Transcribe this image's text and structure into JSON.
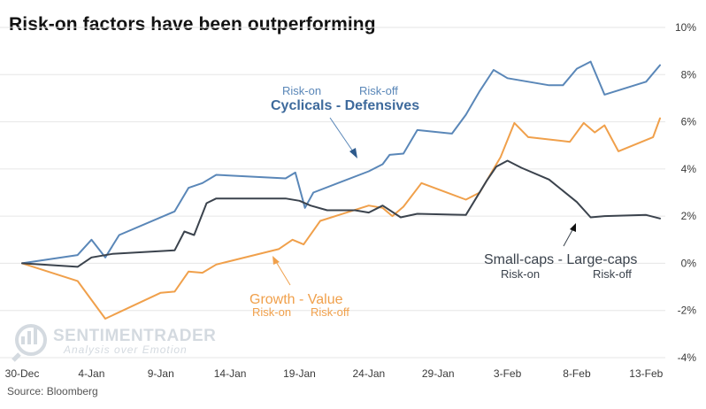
{
  "colors": {
    "blue": "#5a87b8",
    "orange": "#f0a04b",
    "dark": "#3b434d",
    "grid": "#e6e6e6"
  },
  "chart_data": {
    "type": "line",
    "title": "Risk-on factors have been outperforming",
    "source": "Source: Bloomberg",
    "xlabel": "",
    "ylabel": "",
    "x_unit": "days since 30-Dec",
    "xlim": [
      0,
      46
    ],
    "ylim": [
      -4,
      10
    ],
    "y_ticks": [
      {
        "v": 10,
        "label": "10%"
      },
      {
        "v": 8,
        "label": "8%"
      },
      {
        "v": 6,
        "label": "6%"
      },
      {
        "v": 4,
        "label": "4%"
      },
      {
        "v": 2,
        "label": "2%"
      },
      {
        "v": 0,
        "label": "0%"
      },
      {
        "v": -2,
        "label": "-2%"
      },
      {
        "v": -4,
        "label": "-4%"
      }
    ],
    "x_ticks": [
      {
        "v": 0,
        "label": "30-Dec"
      },
      {
        "v": 5,
        "label": "4-Jan"
      },
      {
        "v": 10,
        "label": "9-Jan"
      },
      {
        "v": 15,
        "label": "14-Jan"
      },
      {
        "v": 20,
        "label": "19-Jan"
      },
      {
        "v": 25,
        "label": "24-Jan"
      },
      {
        "v": 30,
        "label": "29-Jan"
      },
      {
        "v": 35,
        "label": "3-Feb"
      },
      {
        "v": 40,
        "label": "8-Feb"
      },
      {
        "v": 45,
        "label": "13-Feb"
      }
    ],
    "series": [
      {
        "key": "cyc",
        "name": "Cyclicals - Defensives",
        "color": "#5a87b8",
        "points": [
          [
            0,
            0
          ],
          [
            4,
            0.35
          ],
          [
            5,
            1.0
          ],
          [
            6,
            0.25
          ],
          [
            7,
            1.2
          ],
          [
            11,
            2.2
          ],
          [
            12,
            3.2
          ],
          [
            13,
            3.4
          ],
          [
            14,
            3.75
          ],
          [
            19,
            3.6
          ],
          [
            19.7,
            3.85
          ],
          [
            20.4,
            2.35
          ],
          [
            21,
            3.0
          ],
          [
            25,
            3.9
          ],
          [
            26,
            4.2
          ],
          [
            26.5,
            4.6
          ],
          [
            27.5,
            4.65
          ],
          [
            28.5,
            5.65
          ],
          [
            31,
            5.5
          ],
          [
            32,
            6.3
          ],
          [
            33,
            7.3
          ],
          [
            34,
            8.2
          ],
          [
            35,
            7.85
          ],
          [
            38,
            7.55
          ],
          [
            39,
            7.55
          ],
          [
            40,
            8.25
          ],
          [
            41,
            8.55
          ],
          [
            42,
            7.15
          ],
          [
            45,
            7.7
          ],
          [
            46,
            8.4
          ]
        ]
      },
      {
        "key": "gv",
        "name": "Growth - Value",
        "color": "#f0a04b",
        "points": [
          [
            0,
            0
          ],
          [
            4,
            -0.75
          ],
          [
            6,
            -2.35
          ],
          [
            10,
            -1.25
          ],
          [
            11,
            -1.2
          ],
          [
            12,
            -0.35
          ],
          [
            13,
            -0.4
          ],
          [
            14,
            -0.05
          ],
          [
            18.5,
            0.6
          ],
          [
            19.5,
            1.0
          ],
          [
            20.3,
            0.8
          ],
          [
            21.5,
            1.8
          ],
          [
            25,
            2.45
          ],
          [
            26,
            2.35
          ],
          [
            26.7,
            2.0
          ],
          [
            27.5,
            2.4
          ],
          [
            28.8,
            3.4
          ],
          [
            32,
            2.7
          ],
          [
            33,
            3.0
          ],
          [
            34.5,
            4.5
          ],
          [
            35.5,
            5.95
          ],
          [
            36.5,
            5.35
          ],
          [
            39.5,
            5.15
          ],
          [
            40.5,
            5.95
          ],
          [
            41.3,
            5.55
          ],
          [
            42,
            5.85
          ],
          [
            43,
            4.75
          ],
          [
            45.5,
            5.35
          ],
          [
            46,
            6.15
          ]
        ]
      },
      {
        "key": "smc",
        "name": "Small-caps - Large-caps",
        "color": "#3b434d",
        "points": [
          [
            0,
            0
          ],
          [
            4,
            -0.15
          ],
          [
            5,
            0.25
          ],
          [
            6.5,
            0.4
          ],
          [
            11,
            0.55
          ],
          [
            11.7,
            1.35
          ],
          [
            12.4,
            1.2
          ],
          [
            13.3,
            2.55
          ],
          [
            14,
            2.75
          ],
          [
            19,
            2.75
          ],
          [
            20,
            2.65
          ],
          [
            20.8,
            2.45
          ],
          [
            22,
            2.25
          ],
          [
            24,
            2.25
          ],
          [
            25,
            2.15
          ],
          [
            26,
            2.45
          ],
          [
            27.3,
            1.95
          ],
          [
            28.5,
            2.1
          ],
          [
            32,
            2.05
          ],
          [
            33.5,
            3.5
          ],
          [
            34.2,
            4.1
          ],
          [
            35,
            4.35
          ],
          [
            36,
            4.05
          ],
          [
            38,
            3.55
          ],
          [
            40,
            2.6
          ],
          [
            41,
            1.95
          ],
          [
            42,
            2.0
          ],
          [
            45,
            2.05
          ],
          [
            46,
            1.9
          ]
        ]
      }
    ],
    "annotations": {
      "cyc": {
        "title": "Cyclicals - Defensives",
        "left": "Risk-on",
        "right": "Risk-off"
      },
      "gv": {
        "title": "Growth - Value",
        "left": "Risk-on",
        "right": "Risk-off"
      },
      "smc": {
        "title": "Small-caps - Large-caps",
        "left": "Risk-on",
        "right": "Risk-off"
      }
    }
  },
  "watermark": {
    "name": "SENTIMENTRADER",
    "tagline": "Analysis over Emotion"
  }
}
